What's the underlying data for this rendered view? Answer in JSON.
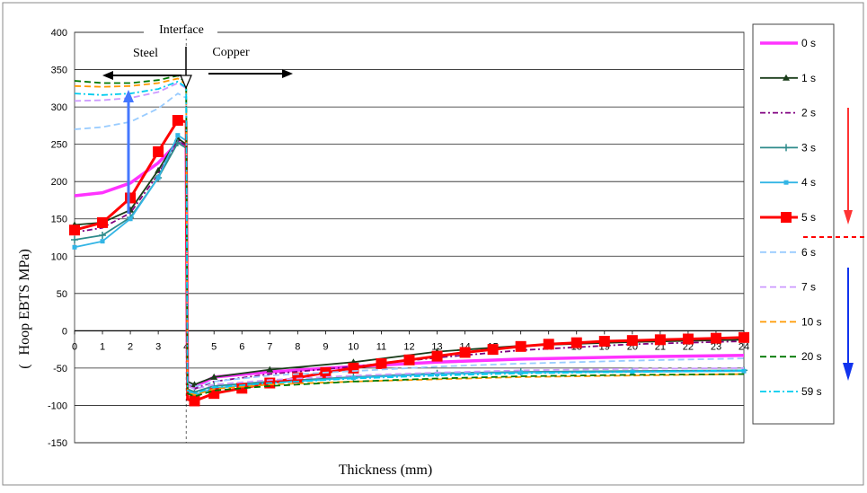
{
  "chart_data": {
    "type": "line",
    "title": "",
    "xlabel": "Thickness (mm)",
    "ylabel": "Hoop EBTS MPa)",
    "ylabel_prefix": "(",
    "xlim": [
      0,
      24
    ],
    "ylim": [
      -150,
      400
    ],
    "x_ticks": [
      0,
      1,
      2,
      3,
      4,
      5,
      6,
      7,
      8,
      9,
      10,
      11,
      12,
      13,
      14,
      15,
      16,
      17,
      18,
      19,
      20,
      21,
      22,
      23,
      24
    ],
    "y_ticks": [
      400,
      350,
      300,
      250,
      200,
      150,
      100,
      50,
      0,
      -50,
      -100,
      -150
    ],
    "grid": "horizontal",
    "legend_position": "right",
    "annotations": {
      "interface": "Interface",
      "steel": "Steel",
      "copper": "Copper",
      "interface_x": 4
    },
    "series": [
      {
        "name": "0 s",
        "color": "#ff33ff",
        "width": 3.5,
        "dash": "",
        "marker": "none",
        "points": [
          [
            0,
            181
          ],
          [
            1,
            185
          ],
          [
            2,
            198
          ],
          [
            3,
            225
          ],
          [
            3.7,
            252
          ],
          [
            4,
            250
          ],
          [
            4.05,
            -70
          ],
          [
            4.3,
            -75
          ],
          [
            5,
            -62
          ],
          [
            7,
            -55
          ],
          [
            10,
            -48
          ],
          [
            13,
            -42
          ],
          [
            16,
            -38
          ],
          [
            20,
            -35
          ],
          [
            24,
            -33
          ]
        ]
      },
      {
        "name": "1 s",
        "color": "#1a3d1a",
        "width": 1.8,
        "dash": "",
        "marker": "triangle",
        "points": [
          [
            0,
            142
          ],
          [
            1,
            145
          ],
          [
            2,
            162
          ],
          [
            3,
            215
          ],
          [
            3.7,
            258
          ],
          [
            4,
            250
          ],
          [
            4.05,
            -68
          ],
          [
            4.3,
            -72
          ],
          [
            5,
            -62
          ],
          [
            7,
            -52
          ],
          [
            10,
            -42
          ],
          [
            13,
            -28
          ],
          [
            16,
            -20
          ],
          [
            20,
            -15
          ],
          [
            24,
            -12
          ]
        ]
      },
      {
        "name": "2 s",
        "color": "#800080",
        "width": 1.8,
        "dash": "6,3,2,3",
        "marker": "none",
        "points": [
          [
            0,
            132
          ],
          [
            1,
            138
          ],
          [
            2,
            158
          ],
          [
            3,
            210
          ],
          [
            3.7,
            255
          ],
          [
            4,
            248
          ],
          [
            4.05,
            -72
          ],
          [
            4.3,
            -78
          ],
          [
            5,
            -68
          ],
          [
            7,
            -58
          ],
          [
            10,
            -48
          ],
          [
            13,
            -36
          ],
          [
            16,
            -26
          ],
          [
            20,
            -18
          ],
          [
            24,
            -14
          ]
        ]
      },
      {
        "name": "3 s",
        "color": "#2e8b8b",
        "width": 1.8,
        "dash": "",
        "marker": "plus",
        "points": [
          [
            0,
            122
          ],
          [
            1,
            128
          ],
          [
            2,
            152
          ],
          [
            3,
            205
          ],
          [
            3.7,
            252
          ],
          [
            4,
            245
          ],
          [
            4.05,
            -78
          ],
          [
            4.3,
            -82
          ],
          [
            5,
            -74
          ],
          [
            7,
            -68
          ],
          [
            10,
            -62
          ],
          [
            13,
            -57
          ],
          [
            16,
            -55
          ],
          [
            20,
            -54
          ],
          [
            24,
            -53
          ]
        ]
      },
      {
        "name": "4 s",
        "color": "#33b5e5",
        "width": 1.8,
        "dash": "",
        "marker": "square",
        "points": [
          [
            0,
            112
          ],
          [
            1,
            120
          ],
          [
            2,
            150
          ],
          [
            3,
            205
          ],
          [
            3.7,
            262
          ],
          [
            4,
            255
          ],
          [
            4.05,
            -82
          ],
          [
            4.3,
            -86
          ],
          [
            5,
            -77
          ],
          [
            7,
            -70
          ],
          [
            10,
            -63
          ],
          [
            13,
            -58
          ],
          [
            16,
            -56
          ],
          [
            20,
            -55
          ],
          [
            24,
            -54
          ]
        ]
      },
      {
        "name": "5 s",
        "color": "#ff0000",
        "width": 3,
        "dash": "",
        "marker": "bigsquare",
        "points": [
          [
            0,
            135
          ],
          [
            1,
            145
          ],
          [
            2,
            178
          ],
          [
            3,
            240
          ],
          [
            3.7,
            282
          ],
          [
            4,
            280
          ],
          [
            4.05,
            -92
          ],
          [
            4.3,
            -94
          ],
          [
            5,
            -84
          ],
          [
            6,
            -77
          ],
          [
            7,
            -70
          ],
          [
            8,
            -63
          ],
          [
            9,
            -56
          ],
          [
            10,
            -50
          ],
          [
            11,
            -44
          ],
          [
            12,
            -39
          ],
          [
            13,
            -34
          ],
          [
            14,
            -29
          ],
          [
            15,
            -25
          ],
          [
            16,
            -21
          ],
          [
            17,
            -18
          ],
          [
            18,
            -16
          ],
          [
            19,
            -14
          ],
          [
            20,
            -13
          ],
          [
            21,
            -12
          ],
          [
            22,
            -11
          ],
          [
            23,
            -10
          ],
          [
            24,
            -9
          ]
        ]
      },
      {
        "name": "6 s",
        "color": "#99ccff",
        "width": 1.8,
        "dash": "7,4",
        "marker": "none",
        "points": [
          [
            0,
            270
          ],
          [
            1,
            273
          ],
          [
            2,
            280
          ],
          [
            3,
            298
          ],
          [
            3.7,
            318
          ],
          [
            4,
            312
          ],
          [
            4.05,
            -70
          ],
          [
            4.3,
            -75
          ],
          [
            5,
            -68
          ],
          [
            7,
            -60
          ],
          [
            10,
            -54
          ],
          [
            13,
            -48
          ],
          [
            16,
            -44
          ],
          [
            20,
            -40
          ],
          [
            24,
            -37
          ]
        ]
      },
      {
        "name": "7 s",
        "color": "#cc99ff",
        "width": 1.8,
        "dash": "7,4",
        "marker": "none",
        "points": [
          [
            0,
            308
          ],
          [
            1,
            309
          ],
          [
            2,
            312
          ],
          [
            3,
            320
          ],
          [
            3.7,
            332
          ],
          [
            4,
            325
          ],
          [
            4.05,
            -74
          ],
          [
            4.3,
            -78
          ],
          [
            5,
            -72
          ],
          [
            7,
            -66
          ],
          [
            10,
            -60
          ],
          [
            13,
            -56
          ],
          [
            16,
            -53
          ],
          [
            20,
            -51
          ],
          [
            24,
            -50
          ]
        ]
      },
      {
        "name": "10 s",
        "color": "#ff9900",
        "width": 1.8,
        "dash": "7,4",
        "marker": "none",
        "points": [
          [
            0,
            328
          ],
          [
            1,
            327
          ],
          [
            2,
            328
          ],
          [
            3,
            332
          ],
          [
            3.7,
            338
          ],
          [
            4,
            330
          ],
          [
            4.05,
            -82
          ],
          [
            4.3,
            -86
          ],
          [
            5,
            -78
          ],
          [
            7,
            -72
          ],
          [
            10,
            -68
          ],
          [
            13,
            -65
          ],
          [
            16,
            -62
          ],
          [
            20,
            -60
          ],
          [
            24,
            -58
          ]
        ]
      },
      {
        "name": "20 s",
        "color": "#007700",
        "width": 1.8,
        "dash": "7,4",
        "marker": "none",
        "points": [
          [
            0,
            335
          ],
          [
            1,
            332
          ],
          [
            2,
            332
          ],
          [
            3,
            336
          ],
          [
            3.7,
            342
          ],
          [
            4,
            332
          ],
          [
            4.05,
            -84
          ],
          [
            4.3,
            -88
          ],
          [
            5,
            -80
          ],
          [
            7,
            -74
          ],
          [
            10,
            -68
          ],
          [
            13,
            -64
          ],
          [
            16,
            -61
          ],
          [
            20,
            -59
          ],
          [
            24,
            -58
          ]
        ]
      },
      {
        "name": "59 s",
        "color": "#00ccee",
        "width": 1.8,
        "dash": "7,3,2,3",
        "marker": "none",
        "points": [
          [
            0,
            318
          ],
          [
            1,
            316
          ],
          [
            2,
            318
          ],
          [
            3,
            324
          ],
          [
            3.7,
            334
          ],
          [
            4,
            326
          ],
          [
            4.05,
            -80
          ],
          [
            4.3,
            -84
          ],
          [
            5,
            -76
          ],
          [
            7,
            -70
          ],
          [
            10,
            -64
          ],
          [
            13,
            -60
          ],
          [
            16,
            -57
          ],
          [
            20,
            -55
          ],
          [
            24,
            -53
          ]
        ]
      }
    ]
  }
}
